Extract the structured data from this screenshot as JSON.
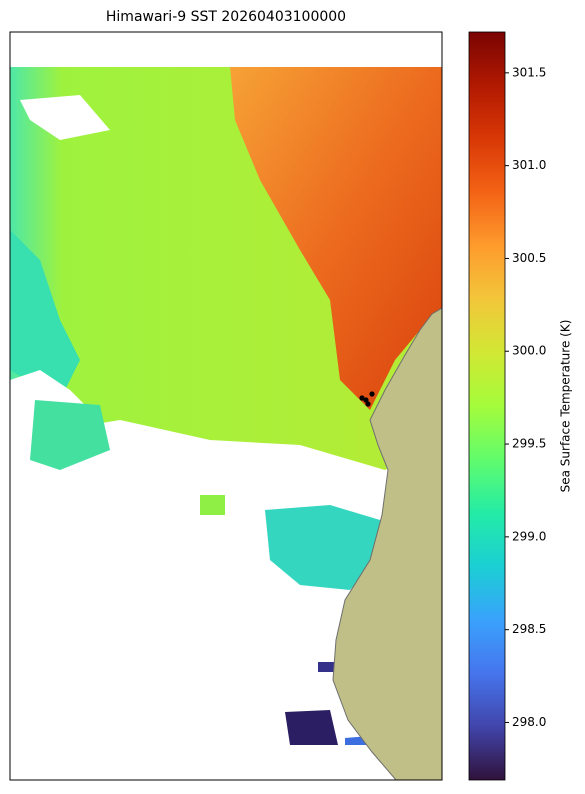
{
  "map": {
    "title": "Himawari-9 SST 20260403100000",
    "colorbar": {
      "label": "Sea Surface Temperature (K)",
      "colormap": "turbo",
      "clim": [
        297.69,
        301.72
      ],
      "ticks": [
        {
          "value": 298,
          "label": "298.0"
        },
        298.5,
        {
          "value": 299,
          "label": "299.0"
        },
        299.5,
        {
          "value": 300,
          "label": "300.0"
        },
        300.5,
        {
          "value": 301,
          "label": "301.0"
        },
        301.5
      ]
    }
  }
}
